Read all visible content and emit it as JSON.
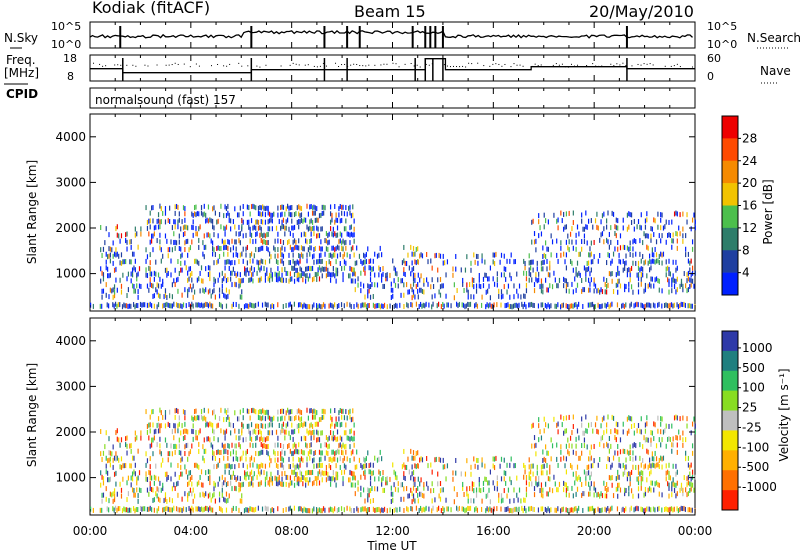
{
  "header": {
    "station": "Kodiak (fitACF)",
    "beam": "Beam 15",
    "date": "20/May/2010"
  },
  "status_panels": {
    "nsky_label": "N.Sky",
    "nsearch_label": "N.Search",
    "noise_ticks": [
      "10^5",
      "10^0"
    ],
    "freq_label_1": "Freq.",
    "freq_label_2": "[MHz]",
    "freq_ticks": [
      "18",
      "8"
    ],
    "nave_label": "Nave",
    "nave_ticks": [
      "60",
      "0"
    ],
    "cpid_label": "CPID",
    "cpid_program": "normalsound (fast) 157",
    "noise_sky_level": 0.45,
    "freq_base_level": 0.32
  },
  "colors": {
    "power_scale": [
      "#0020ff",
      "#1f3fa0",
      "#2e7d6a",
      "#4cbf4c",
      "#f2c300",
      "#f58a00",
      "#ff4a00",
      "#ee0000"
    ],
    "velocity_scale": [
      "#2e39a8",
      "#1f7f7f",
      "#2fbf5f",
      "#88dd22",
      "#bfbfbf",
      "#f2e600",
      "#ffb000",
      "#ff7000",
      "#ff2000"
    ]
  },
  "chart_data": [
    {
      "type": "heatmap",
      "name": "power",
      "xlabel": "",
      "ylabel": "Slant Range [km]",
      "xlim": [
        0,
        24
      ],
      "ylim": [
        180,
        4500
      ],
      "yticks": [
        "1000",
        "2000",
        "3000",
        "4000"
      ],
      "colorbar_label": "Power [dB]",
      "colorbar_ticks": [
        "4",
        "8",
        "12",
        "16",
        "20",
        "24",
        "28"
      ],
      "colorbar_range": [
        0,
        32
      ]
    },
    {
      "type": "heatmap",
      "name": "velocity",
      "xlabel": "Time UT",
      "ylabel": "Slant Range [km]",
      "xlim": [
        0,
        24
      ],
      "ylim": [
        180,
        4500
      ],
      "xticks": [
        "00:00",
        "04:00",
        "08:00",
        "12:00",
        "16:00",
        "20:00",
        "00:00"
      ],
      "yticks": [
        "1000",
        "2000",
        "3000",
        "4000"
      ],
      "colorbar_label": "Velocity [m s⁻¹]",
      "colorbar_ticks": [
        "1000",
        "500",
        "100",
        "25",
        "-25",
        "-100",
        "-500",
        "-1000"
      ]
    }
  ],
  "scatter_bands": [
    {
      "t0": 0.0,
      "t1": 24.0,
      "ranges": [
        300
      ],
      "density": 0.7
    },
    {
      "t0": 0.4,
      "t1": 2.0,
      "ranges": [
        500,
        620,
        740,
        860,
        980,
        1100,
        1250,
        1400,
        1550,
        1700,
        1850,
        2000
      ],
      "density": 0.3
    },
    {
      "t0": 2.2,
      "t1": 6.0,
      "ranges": [
        500,
        620,
        740,
        860,
        980,
        1100,
        1250,
        1400,
        1550,
        1700,
        1850,
        2000,
        2150,
        2300,
        2450
      ],
      "density": 0.35
    },
    {
      "t0": 6.0,
      "t1": 10.5,
      "ranges": [
        860,
        980,
        1100,
        1250,
        1400,
        1550,
        1700,
        1850,
        2000,
        2150,
        2300,
        2450
      ],
      "density": 0.5
    },
    {
      "t0": 10.5,
      "t1": 13.0,
      "ranges": [
        500,
        620,
        740,
        860,
        980,
        1100,
        1250,
        1400,
        1550
      ],
      "density": 0.28
    },
    {
      "t0": 13.0,
      "t1": 17.5,
      "ranges": [
        500,
        620,
        740,
        860,
        980,
        1100,
        1250,
        1400
      ],
      "density": 0.22
    },
    {
      "t0": 17.5,
      "t1": 24.0,
      "ranges": [
        620,
        740,
        860,
        980,
        1100,
        1250,
        1400,
        1550,
        1700,
        1850,
        2000,
        2150,
        2300
      ],
      "density": 0.32
    }
  ]
}
